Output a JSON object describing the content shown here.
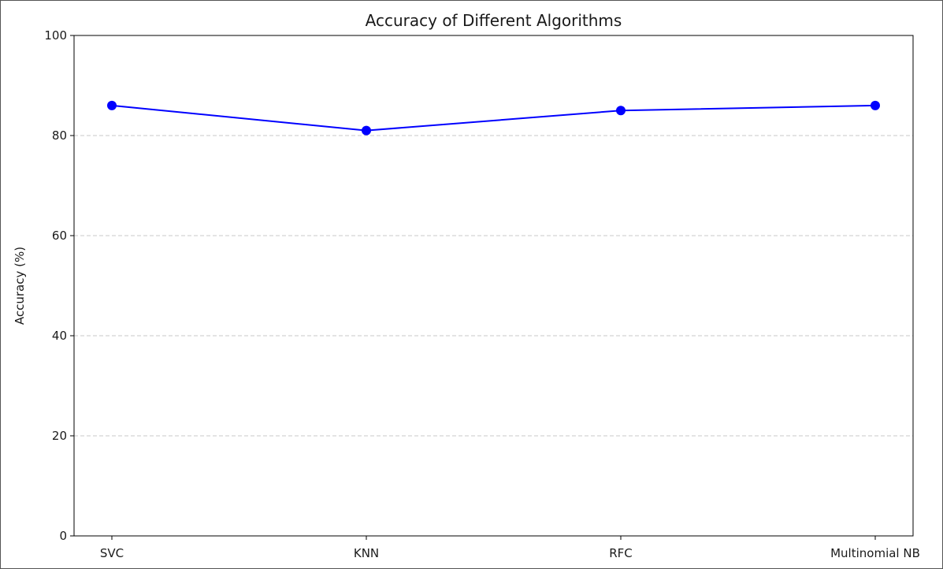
{
  "chart_data": {
    "type": "line",
    "title": "Accuracy of Different Algorithms",
    "xlabel": "",
    "ylabel": "Accuracy (%)",
    "categories": [
      "SVC",
      "KNN",
      "RFC",
      "Multinomial NB"
    ],
    "series": [
      {
        "values": [
          86,
          81,
          85,
          86
        ],
        "color": "#0000ff",
        "marker": "circle"
      }
    ],
    "ylim": [
      0,
      100
    ],
    "yticks": [
      0,
      20,
      40,
      60,
      80,
      100
    ],
    "ytick_labels": [
      "0",
      "20",
      "40",
      "60",
      "80",
      "100"
    ],
    "grid": {
      "axis": "y",
      "style": "dashed",
      "color": "#c8c8c8"
    }
  }
}
